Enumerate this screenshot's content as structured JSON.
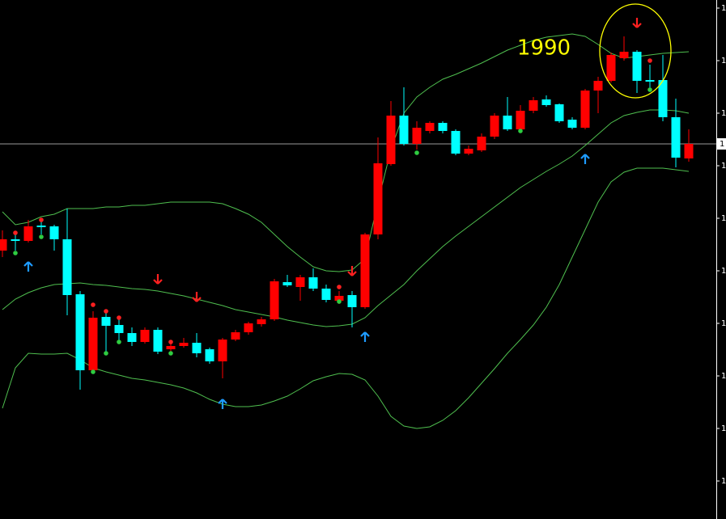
{
  "chart_data": {
    "type": "candlestick",
    "annotation": "1990",
    "categories": [
      null,
      null,
      null,
      null,
      null,
      null,
      null,
      null,
      null,
      null,
      null,
      null,
      null,
      null,
      null,
      null,
      null,
      null,
      null,
      null,
      null,
      null,
      null,
      null,
      null,
      null,
      null,
      null,
      null,
      null,
      null,
      null,
      null,
      null,
      null,
      null,
      null,
      null,
      null,
      null,
      null,
      null,
      null,
      null,
      null,
      null,
      null,
      null,
      null,
      null,
      null,
      null,
      null,
      null
    ],
    "open": [
      1690,
      1704,
      1702,
      1721,
      1720,
      1704,
      1636,
      1542,
      1608,
      1598,
      1588,
      1577,
      1592,
      1568,
      1572,
      1576,
      1568,
      1553,
      1580,
      1589,
      1599,
      1605,
      1651,
      1645,
      1657,
      1643,
      1628,
      1635,
      1620,
      1710,
      1797,
      1857,
      1822,
      1838,
      1848,
      1838,
      1810,
      1814,
      1831,
      1857,
      1840,
      1863,
      1877,
      1871,
      1852,
      1842,
      1888,
      1900,
      1928,
      1936,
      1901,
      1901,
      1855,
      1804
    ],
    "close": [
      1704,
      1702,
      1720,
      1719,
      1704,
      1635,
      1542,
      1607,
      1597,
      1588,
      1577,
      1592,
      1565,
      1572,
      1576,
      1563,
      1553,
      1580,
      1589,
      1600,
      1605,
      1652,
      1647,
      1657,
      1643,
      1629,
      1634,
      1620,
      1710,
      1798,
      1857,
      1822,
      1842,
      1848,
      1838,
      1810,
      1816,
      1831,
      1857,
      1840,
      1863,
      1876,
      1870,
      1850,
      1842,
      1888,
      1900,
      1932,
      1936,
      1900,
      1899,
      1855,
      1805,
      1822
    ],
    "high": [
      1715,
      1712,
      1728,
      1728,
      1722,
      1742,
      1640,
      1615,
      1615,
      1605,
      1595,
      1595,
      1595,
      1578,
      1582,
      1588,
      1570,
      1582,
      1592,
      1602,
      1608,
      1655,
      1660,
      1660,
      1668,
      1648,
      1640,
      1640,
      1712,
      1830,
      1875,
      1892,
      1850,
      1850,
      1850,
      1840,
      1820,
      1835,
      1860,
      1880,
      1870,
      1880,
      1882,
      1872,
      1855,
      1890,
      1905,
      1935,
      1955,
      1938,
      1920,
      1932,
      1878,
      1840
    ],
    "low": [
      1682,
      1690,
      1700,
      1710,
      1690,
      1610,
      1518,
      1538,
      1565,
      1575,
      1572,
      1575,
      1562,
      1564,
      1570,
      1558,
      1550,
      1532,
      1578,
      1586,
      1596,
      1603,
      1645,
      1628,
      1640,
      1626,
      1624,
      1595,
      1618,
      1704,
      1795,
      1820,
      1815,
      1835,
      1835,
      1808,
      1808,
      1812,
      1828,
      1838,
      1838,
      1860,
      1868,
      1848,
      1840,
      1840,
      1860,
      1898,
      1925,
      1885,
      1890,
      1850,
      1793,
      1800
    ],
    "upper_band": [
      1738,
      1722,
      1725,
      1732,
      1735,
      1742,
      1742,
      1742,
      1744,
      1744,
      1746,
      1746,
      1748,
      1750,
      1750,
      1750,
      1750,
      1748,
      1742,
      1735,
      1725,
      1710,
      1695,
      1682,
      1670,
      1665,
      1664,
      1666,
      1680,
      1750,
      1815,
      1860,
      1880,
      1892,
      1902,
      1908,
      1915,
      1922,
      1930,
      1938,
      1944,
      1950,
      1954,
      1956,
      1958,
      1955,
      1945,
      1934,
      1928,
      1930,
      1932,
      1934,
      1935,
      1936
    ],
    "middle_band": [
      1617,
      1630,
      1638,
      1644,
      1648,
      1649,
      1650,
      1648,
      1647,
      1645,
      1643,
      1642,
      1640,
      1637,
      1634,
      1630,
      1626,
      1622,
      1617,
      1614,
      1611,
      1608,
      1604,
      1601,
      1598,
      1596,
      1597,
      1599,
      1607,
      1622,
      1635,
      1648,
      1665,
      1680,
      1695,
      1708,
      1720,
      1732,
      1744,
      1756,
      1768,
      1778,
      1788,
      1797,
      1807,
      1820,
      1834,
      1848,
      1857,
      1861,
      1864,
      1864,
      1863,
      1860
    ],
    "lower_band": [
      1495,
      1545,
      1563,
      1562,
      1562,
      1563,
      1555,
      1545,
      1540,
      1536,
      1532,
      1530,
      1527,
      1524,
      1520,
      1514,
      1506,
      1500,
      1497,
      1497,
      1499,
      1504,
      1510,
      1519,
      1529,
      1534,
      1538,
      1537,
      1530,
      1510,
      1485,
      1473,
      1470,
      1472,
      1480,
      1492,
      1508,
      1526,
      1544,
      1563,
      1580,
      1598,
      1620,
      1648,
      1682,
      1716,
      1750,
      1775,
      1787,
      1792,
      1792,
      1792,
      1790,
      1788
    ],
    "up_arrows": [
      null,
      null,
      1670,
      null,
      null,
      null,
      null,
      null,
      null,
      null,
      null,
      null,
      null,
      null,
      null,
      null,
      null,
      1500,
      null,
      null,
      null,
      null,
      null,
      null,
      null,
      null,
      null,
      null,
      1583,
      null,
      null,
      null,
      null,
      null,
      null,
      null,
      null,
      null,
      null,
      null,
      null,
      null,
      null,
      null,
      null,
      1803,
      null,
      null,
      null,
      null,
      null,
      null,
      null,
      null
    ],
    "down_arrows": [
      null,
      null,
      null,
      null,
      null,
      null,
      null,
      null,
      null,
      null,
      null,
      null,
      1655,
      null,
      null,
      1633,
      null,
      null,
      null,
      null,
      null,
      null,
      null,
      null,
      null,
      null,
      null,
      1665,
      null,
      null,
      null,
      null,
      null,
      null,
      null,
      null,
      null,
      null,
      null,
      null,
      null,
      null,
      null,
      null,
      null,
      null,
      null,
      null,
      null,
      1972,
      null,
      null,
      null,
      null
    ],
    "top_dots": [
      null,
      1712,
      null,
      1728,
      null,
      null,
      null,
      1623,
      1615,
      1607,
      null,
      null,
      null,
      1577,
      null,
      null,
      null,
      null,
      null,
      null,
      null,
      null,
      null,
      null,
      null,
      null,
      1645,
      null,
      null,
      null,
      null,
      null,
      null,
      null,
      null,
      null,
      null,
      null,
      null,
      null,
      null,
      null,
      null,
      null,
      null,
      null,
      null,
      null,
      null,
      null,
      1925,
      null,
      null,
      null
    ],
    "bottom_dots": [
      null,
      1687,
      null,
      1707,
      null,
      null,
      null,
      1540,
      1563,
      1577,
      null,
      null,
      null,
      1563,
      null,
      null,
      null,
      null,
      null,
      null,
      null,
      null,
      null,
      null,
      null,
      null,
      1627,
      null,
      null,
      null,
      null,
      null,
      1811,
      null,
      null,
      null,
      null,
      null,
      null,
      null,
      1838,
      null,
      null,
      null,
      null,
      null,
      null,
      null,
      null,
      null,
      1889,
      null,
      null,
      null
    ],
    "ylim": [
      1358,
      2000
    ],
    "yticks": [
      {
        "value": 1990,
        "label": "1"
      },
      {
        "value": 1925,
        "label": "1"
      },
      {
        "value": 1860,
        "label": "1"
      },
      {
        "value": 1795,
        "label": "1"
      },
      {
        "value": 1730,
        "label": "1"
      },
      {
        "value": 1665,
        "label": "1"
      },
      {
        "value": 1600,
        "label": "1"
      },
      {
        "value": 1535,
        "label": "1"
      },
      {
        "value": 1470,
        "label": "1"
      },
      {
        "value": 1405,
        "label": "1"
      }
    ],
    "price_line": {
      "value": 1822,
      "label": "1"
    },
    "up_color": "#ff0000",
    "down_color": "#00ffff",
    "band_color": "#4fbf4f",
    "up_arrow_color": "#1e9bff",
    "down_arrow_color": "#ff2020",
    "top_dot_color": "#ff2020",
    "bottom_dot_color": "#2ecc40",
    "annotation_color": "#ffff00"
  }
}
